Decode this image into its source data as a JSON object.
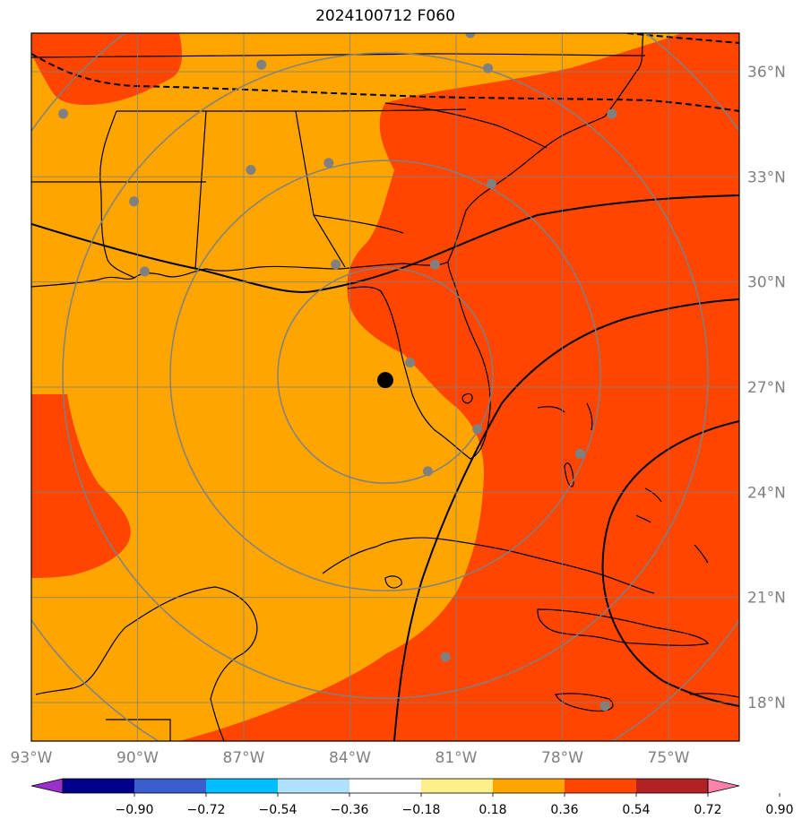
{
  "title": "2024100712 F060",
  "colors": {
    "band_036_054": "#ffa500",
    "band_054_072": "#ff4500",
    "grid": "#808080",
    "coast": "#000000",
    "storm_center": "#000000",
    "station": "#808080"
  },
  "map": {
    "lon_range": [
      -93.0,
      -73.0
    ],
    "lat_range": [
      16.9,
      37.1
    ],
    "lon_ticks": [
      {
        "value": -93,
        "label": "93°W"
      },
      {
        "value": -90,
        "label": "90°W"
      },
      {
        "value": -87,
        "label": "87°W"
      },
      {
        "value": -84,
        "label": "84°W"
      },
      {
        "value": -81,
        "label": "81°W"
      },
      {
        "value": -78,
        "label": "78°W"
      },
      {
        "value": -75,
        "label": "75°W"
      }
    ],
    "lat_ticks": [
      {
        "value": 36,
        "label": "36°N"
      },
      {
        "value": 33,
        "label": "33°N"
      },
      {
        "value": 30,
        "label": "30°N"
      },
      {
        "value": 27,
        "label": "27°N"
      },
      {
        "value": 24,
        "label": "24°N"
      },
      {
        "value": 21,
        "label": "21°N"
      },
      {
        "value": 18,
        "label": "18°N"
      }
    ],
    "storm_center": {
      "lon": -83.0,
      "lat": 27.2
    },
    "range_ring_count": 4,
    "stations": [
      {
        "lon": -86.5,
        "lat": 36.2
      },
      {
        "lon": -80.6,
        "lat": 37.1
      },
      {
        "lon": -80.1,
        "lat": 36.1
      },
      {
        "lon": -92.1,
        "lat": 34.8
      },
      {
        "lon": -76.6,
        "lat": 34.8
      },
      {
        "lon": -86.8,
        "lat": 33.2
      },
      {
        "lon": -84.6,
        "lat": 33.4
      },
      {
        "lon": -90.1,
        "lat": 32.3
      },
      {
        "lon": -80.0,
        "lat": 32.8
      },
      {
        "lon": -89.8,
        "lat": 30.3
      },
      {
        "lon": -84.4,
        "lat": 30.5
      },
      {
        "lon": -81.6,
        "lat": 30.5
      },
      {
        "lon": -82.3,
        "lat": 27.7
      },
      {
        "lon": -80.4,
        "lat": 25.8
      },
      {
        "lon": -81.8,
        "lat": 24.6
      },
      {
        "lon": -77.5,
        "lat": 25.1
      },
      {
        "lon": -81.3,
        "lat": 19.3
      },
      {
        "lon": -76.8,
        "lat": 17.9
      }
    ]
  },
  "colorbar": {
    "colors": [
      "#9932cc",
      "#00008b",
      "#3a5fcd",
      "#00bfff",
      "#b0e2ff",
      "#ffffff",
      "#fff08c",
      "#ffa500",
      "#ff4500",
      "#b22222",
      "#ff82ab"
    ],
    "ticks": [
      "−0.90",
      "−0.72",
      "−0.54",
      "−0.36",
      "−0.18",
      "0.18",
      "0.36",
      "0.54",
      "0.72",
      "0.90"
    ]
  }
}
